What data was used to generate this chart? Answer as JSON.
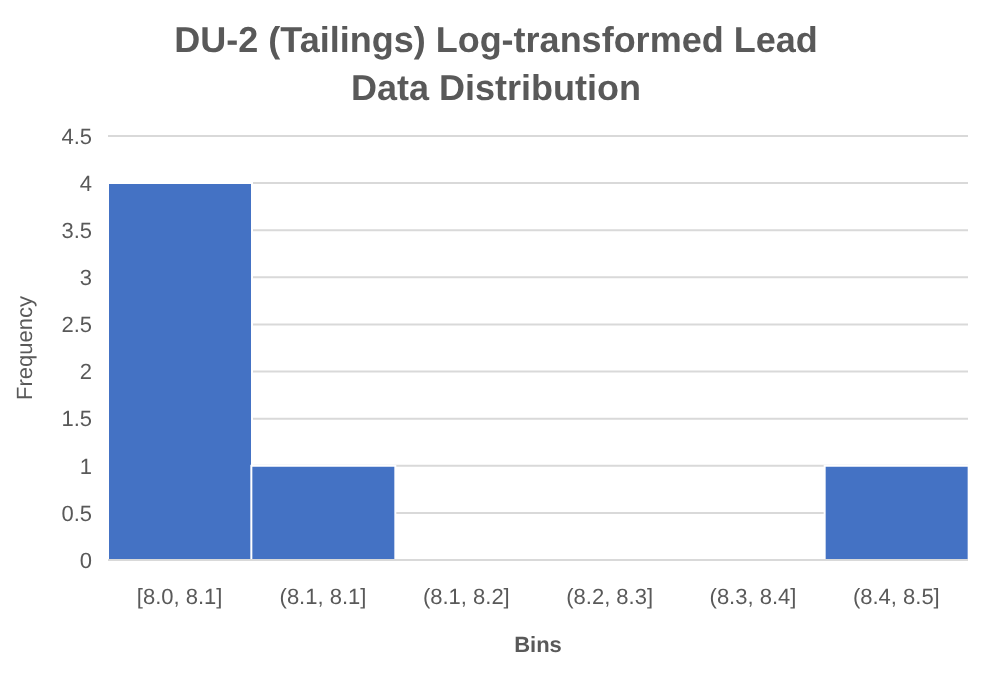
{
  "chart_data": {
    "type": "bar",
    "title": "DU-2 (Tailings) Log-transformed Lead Data Distribution",
    "xlabel": "Bins",
    "ylabel": "Frequency",
    "categories": [
      "[8.0, 8.1]",
      "(8.1, 8.1]",
      "(8.1, 8.2]",
      "(8.2, 8.3]",
      "(8.3, 8.4]",
      "(8.4, 8.5]"
    ],
    "values": [
      4,
      1,
      0,
      0,
      0,
      1
    ],
    "color": "#4472c4",
    "ylim": [
      0,
      4.5
    ],
    "yticks": [
      0,
      0.5,
      1,
      1.5,
      2,
      2.5,
      3,
      3.5,
      4,
      4.5
    ],
    "grid": "y"
  }
}
